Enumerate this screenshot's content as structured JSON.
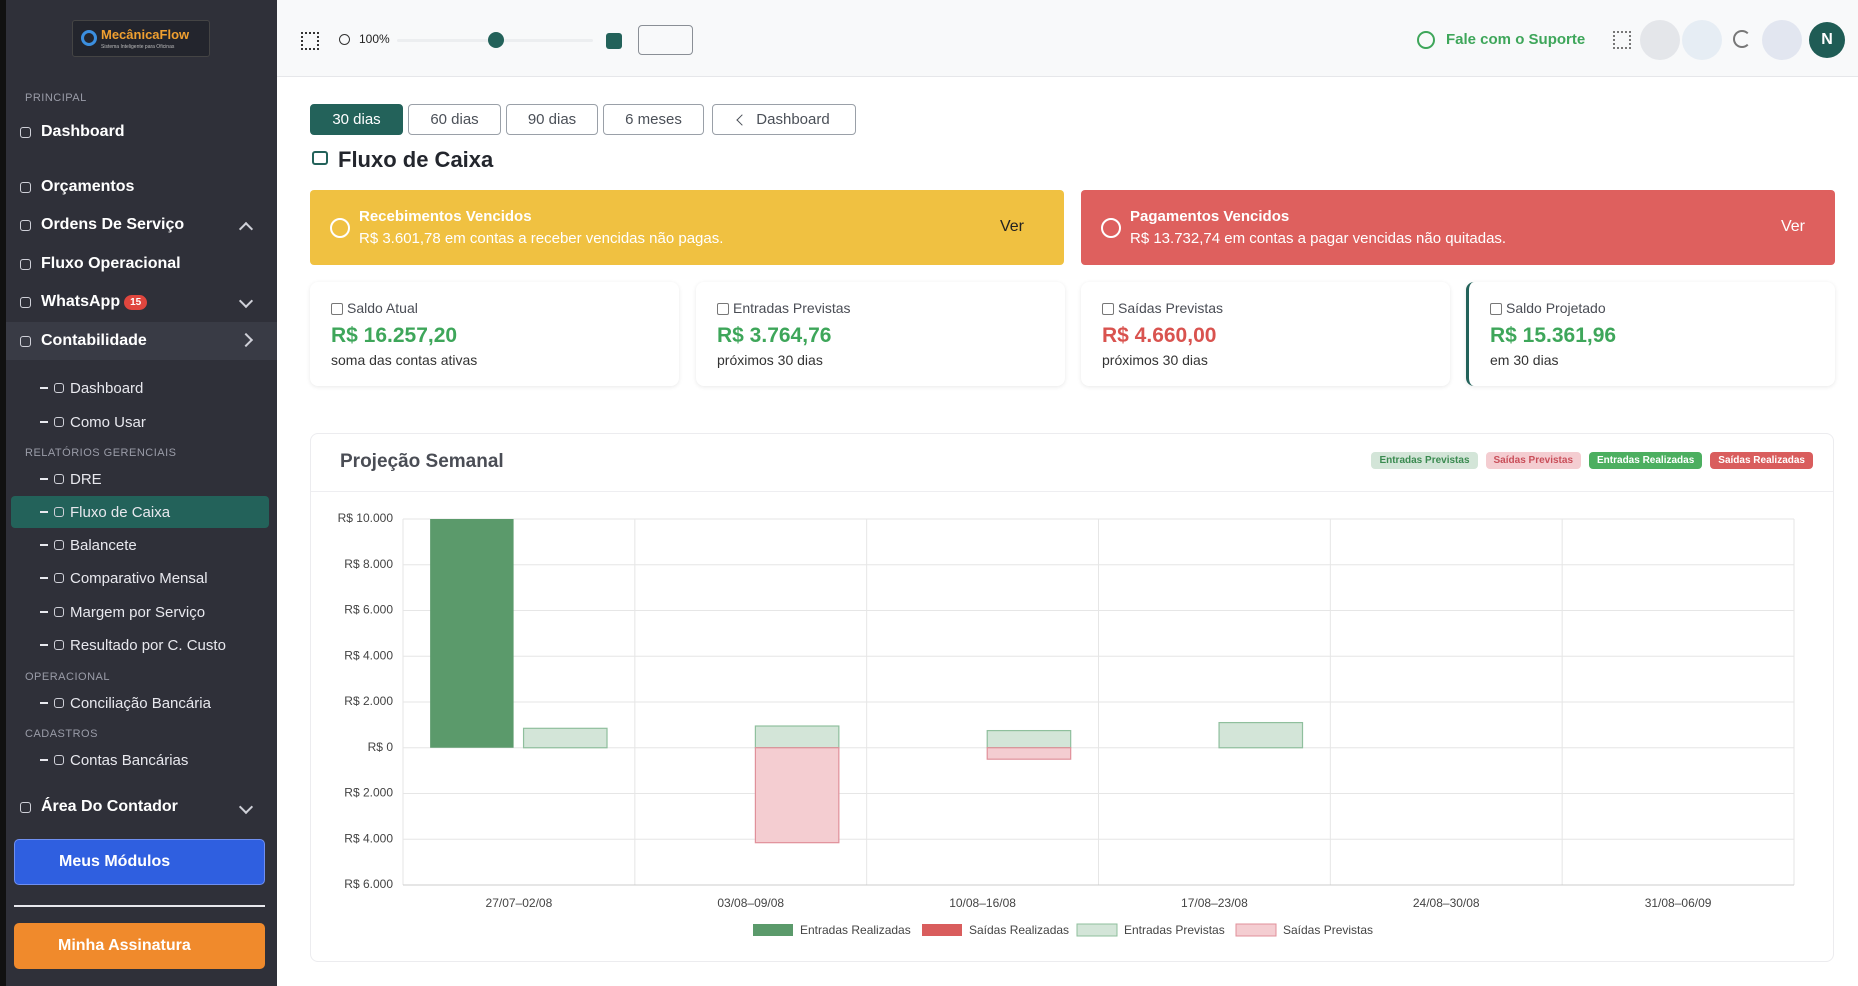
{
  "sidebar": {
    "logo": "MecânicaFlow",
    "tagline": "Sistema Inteligente para Oficinas",
    "section": "PRINCIPAL",
    "menu": [
      {
        "label": "Dashboard"
      },
      {
        "label": "Orçamentos"
      },
      {
        "label": "Ordens De Serviço"
      },
      {
        "label": "Fluxo Operacional"
      },
      {
        "label": "WhatsApp",
        "badge": 15
      },
      {
        "label": "Contabilidade",
        "active": true
      }
    ],
    "submenu": [
      {
        "label": "Dashboard"
      },
      {
        "label": "Como Usar"
      },
      {
        "heading": "RELATÓRIOS GERENCIAIS"
      },
      {
        "label": "DRE"
      },
      {
        "label": "Fluxo de Caixa",
        "active": true
      },
      {
        "label": "Balancete"
      },
      {
        "label": "Comparativo Mensal"
      },
      {
        "label": "Margem por Serviço"
      },
      {
        "label": "Resultado por C. Custo"
      },
      {
        "heading": "OPERACIONAL"
      },
      {
        "label": "Conciliação Bancária"
      },
      {
        "heading": "CADASTROS"
      },
      {
        "label": "Contas Bancárias"
      }
    ],
    "contador": "Área Do Contador",
    "modules_button": "Meus Módulos",
    "subscription_button": "Minha Assinatura"
  },
  "topbar": {
    "zoom": "100%",
    "support": "Fale com o Suporte",
    "avatar": "N"
  },
  "periods": [
    "30 dias",
    "60 dias",
    "90 dias",
    "6 meses"
  ],
  "active_period": 0,
  "back_button": "Dashboard",
  "page_title": "Fluxo de Caixa",
  "alerts": [
    {
      "title": "Recebimentos Vencidos",
      "text": "R$ 3.601,78 em contas a receber vencidas não pagas.",
      "action": "Ver",
      "color": "#f0c141"
    },
    {
      "title": "Pagamentos Vencidos",
      "text": "R$ 13.732,74 em contas a pagar vencidas não quitadas.",
      "action": "Ver",
      "color": "#de605e"
    }
  ],
  "cards": [
    {
      "label": "Saldo Atual",
      "value": "R$ 16.257,20",
      "note": "soma das contas ativas",
      "color": "#3ea65a"
    },
    {
      "label": "Entradas Previstas",
      "value": "R$ 3.764,76",
      "note": "próximos 30 dias",
      "color": "#3ea65a"
    },
    {
      "label": "Saídas Previstas",
      "value": "R$ 4.660,00",
      "note": "próximos 30 dias",
      "color": "#d9534f"
    },
    {
      "label": "Saldo Projetado",
      "value": "R$ 15.361,96",
      "note": "em 30 dias",
      "color": "#3ea65a",
      "highlight": true
    }
  ],
  "chart_data": {
    "type": "bar",
    "title": "Projeção Semanal",
    "categories": [
      "27/07–02/08",
      "03/08–09/08",
      "10/08–16/08",
      "17/08–23/08",
      "24/08–30/08",
      "31/08–06/09"
    ],
    "series": [
      {
        "name": "Entradas Realizadas",
        "color": "#5b9a6b",
        "values": [
          10000,
          0,
          0,
          0,
          0,
          0
        ]
      },
      {
        "name": "Saídas Realizadas",
        "color": "#d95d5d",
        "values": [
          0,
          0,
          0,
          0,
          0,
          0
        ]
      },
      {
        "name": "Entradas Previstas",
        "color": "#d3e5d8",
        "border": "#8fbf9d",
        "values": [
          850,
          950,
          750,
          1100,
          0,
          0
        ]
      },
      {
        "name": "Saídas Previstas",
        "color": "#f4cdd1",
        "border": "#e0909a",
        "values": [
          0,
          -4150,
          -500,
          0,
          0,
          0
        ]
      }
    ],
    "ylim": [
      -6000,
      10000
    ],
    "yticks": [
      {
        "value": -6000,
        "label": "R$ 6.000"
      },
      {
        "value": -4000,
        "label": "R$ 4.000"
      },
      {
        "value": -2000,
        "label": "R$ 2.000"
      },
      {
        "value": 0,
        "label": "R$ 0"
      },
      {
        "value": 2000,
        "label": "R$ 2.000"
      },
      {
        "value": 4000,
        "label": "R$ 4.000"
      },
      {
        "value": 6000,
        "label": "R$ 6.000"
      },
      {
        "value": 8000,
        "label": "R$ 8.000"
      },
      {
        "value": 10000,
        "label": "R$ 10.000"
      }
    ],
    "grid": true,
    "legend": "bottom"
  }
}
